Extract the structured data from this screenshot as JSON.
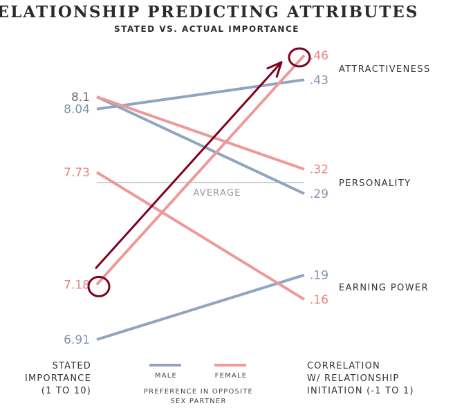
{
  "chart_data": {
    "type": "line",
    "title": "RELATIONSHIP PREDICTING ATTRIBUTES",
    "subtitle": "STATED VS. ACTUAL IMPORTANCE",
    "left_axis_label": [
      "STATED",
      "IMPORTANCE",
      "(1 TO 10)"
    ],
    "right_axis_label": [
      "CORRELATION",
      "W/ RELATIONSHIP",
      "INITIATION (-1 TO 1)"
    ],
    "categories": [
      "ATTRACTIVENESS",
      "PERSONALITY",
      "EARNING POWER"
    ],
    "average_label": "AVERAGE",
    "legend": {
      "items": [
        "MALE",
        "FEMALE"
      ],
      "caption": [
        "PREFERENCE IN OPPOSITE",
        "SEX PARTNER"
      ]
    },
    "left_range": [
      6.91,
      8.1
    ],
    "right_range": [
      0.16,
      0.46
    ],
    "series": [
      {
        "name": "MALE",
        "color": "#8fa5c0",
        "values": [
          {
            "category": "ATTRACTIVENESS",
            "stated": 8.04,
            "stated_label": "8.04",
            "correlation": 0.43,
            "correlation_label": ".43"
          },
          {
            "category": "PERSONALITY",
            "stated": 8.1,
            "stated_label": "8.1",
            "correlation": 0.29,
            "correlation_label": ".29"
          },
          {
            "category": "EARNING POWER",
            "stated": 6.91,
            "stated_label": "6.91",
            "correlation": 0.19,
            "correlation_label": ".19"
          }
        ]
      },
      {
        "name": "FEMALE",
        "color": "#ee9999",
        "values": [
          {
            "category": "ATTRACTIVENESS",
            "stated": 7.18,
            "stated_label": "7.18",
            "correlation": 0.46,
            "correlation_label": ".46"
          },
          {
            "category": "PERSONALITY",
            "stated": 8.1,
            "stated_label": "8.1",
            "correlation": 0.32,
            "correlation_label": ".32"
          },
          {
            "category": "EARNING POWER",
            "stated": 7.73,
            "stated_label": "7.73",
            "correlation": 0.16,
            "correlation_label": ".16"
          }
        ]
      }
    ],
    "annotation": {
      "color": "#800020",
      "description": "hand-drawn arrow from the female 7.18 point to the .46 point, both circled"
    }
  }
}
